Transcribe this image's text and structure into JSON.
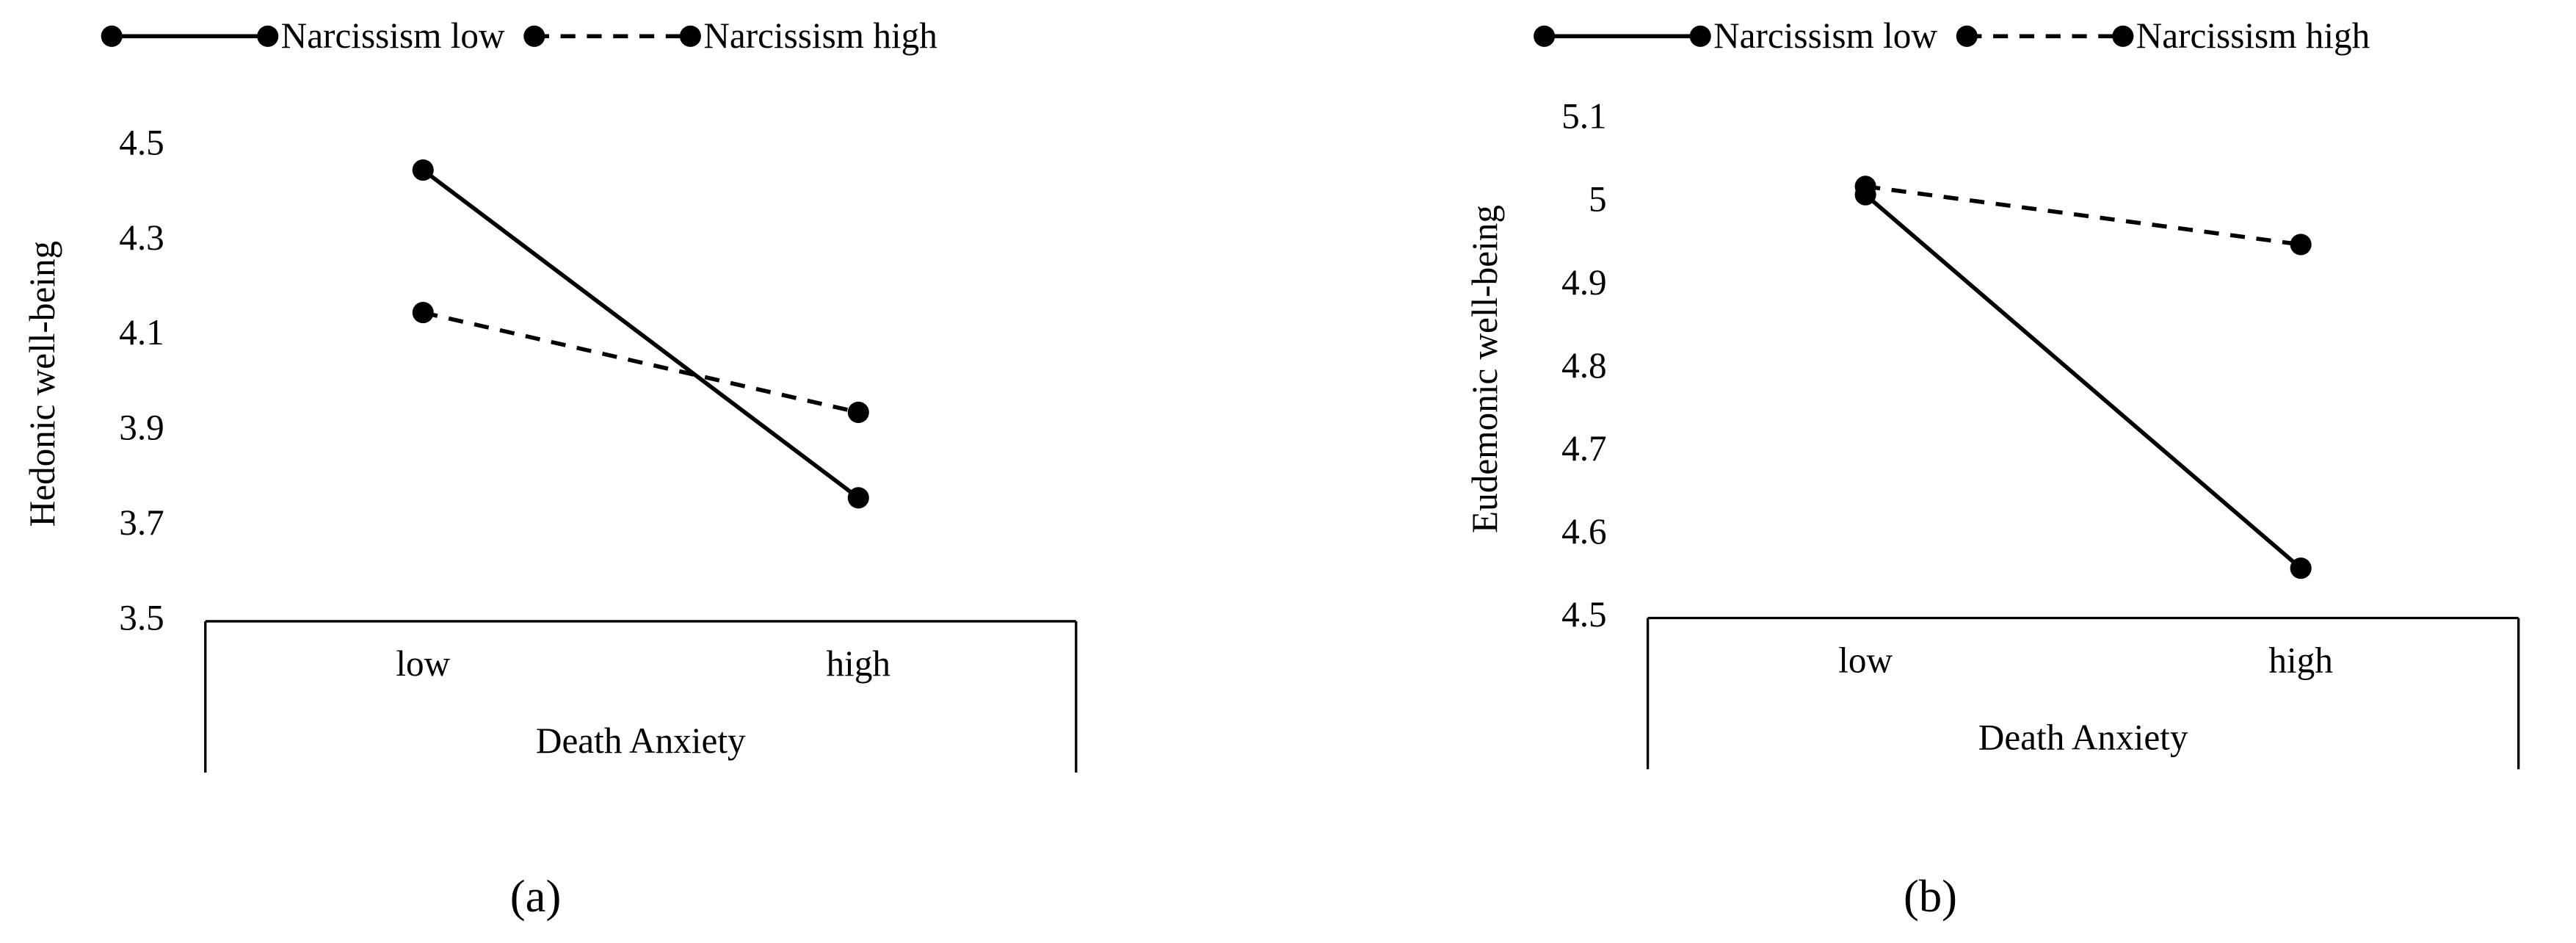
{
  "chart_data": [
    {
      "type": "line",
      "panel_label": "(a)",
      "x_label": "Death Anxiety",
      "y_label": "Hedonic well-being",
      "categories": [
        "low",
        "high"
      ],
      "series": [
        {
          "name": "Narcissism low",
          "color": "#000000",
          "line_style": "solid",
          "values": [
            4.45,
            3.76
          ]
        },
        {
          "name": "Narcissism high",
          "color": "#000000",
          "line_style": "dashed",
          "values": [
            4.15,
            3.94
          ]
        }
      ],
      "ylim": [
        3.5,
        4.5
      ],
      "yticks": [
        3.5,
        3.7,
        3.9,
        4.1,
        4.3,
        4.5
      ],
      "grid": false,
      "legend": "top"
    },
    {
      "type": "line",
      "panel_label": "(b)",
      "x_label": "Death Anxiety",
      "y_label": "Eudemonic well-being",
      "categories": [
        "low",
        "high"
      ],
      "series": [
        {
          "name": "Narcissism low",
          "color": "#000000",
          "line_style": "solid",
          "values": [
            5.01,
            4.56
          ]
        },
        {
          "name": "Narcissism high",
          "color": "#000000",
          "line_style": "dashed",
          "values": [
            5.02,
            4.95
          ]
        }
      ],
      "ylim": [
        4.5,
        5.1
      ],
      "yticks": [
        4.5,
        4.6,
        4.7,
        4.8,
        4.9,
        5,
        5.1
      ],
      "grid": false,
      "legend": "top"
    }
  ]
}
